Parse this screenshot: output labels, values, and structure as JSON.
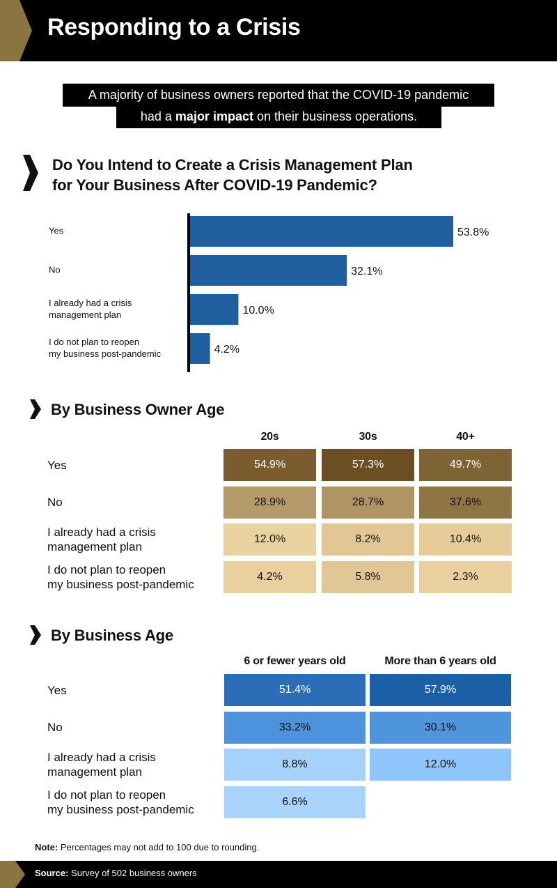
{
  "header": {
    "title": "Responding to a Crisis"
  },
  "intro": {
    "line1": "A majority of business owners reported that the COVID-19 pandemic",
    "line2_prefix": "had a ",
    "line2_bold": "major impact",
    "line2_suffix": " on their business operations."
  },
  "colors": {
    "gold_accent": "#8a7440",
    "bar_blue": "#1f5f9f",
    "owner_yes": [
      "#7a5c2e",
      "#6b4e22",
      "#7e6334"
    ],
    "owner_no": [
      "#b49a6b",
      "#ae9563",
      "#8f7444"
    ],
    "owner_had": [
      "#e8d2a0",
      "#e2c795",
      "#e6cc98"
    ],
    "owner_reopen": [
      "#e9d09e",
      "#e2c796",
      "#ead09f"
    ],
    "biz_yes": [
      "#2b6db6",
      "#1b5fa7"
    ],
    "biz_no": [
      "#4c92dc",
      "#4f95dd"
    ],
    "biz_had": [
      "#a6d1fb",
      "#8ec6fb"
    ],
    "biz_reopen": [
      "#a9d3fb"
    ]
  },
  "question": {
    "title_line1": "Do You Intend to Create a Crisis Management Plan",
    "title_line2": "for Your Business After COVID-19 Pandemic?"
  },
  "chart_data": {
    "type": "bar",
    "orientation": "horizontal",
    "categories": [
      [
        "Yes"
      ],
      [
        "No"
      ],
      [
        "I already had a crisis",
        "management plan"
      ],
      [
        "I do not plan to reopen",
        "my business post-pandemic"
      ]
    ],
    "values": [
      53.8,
      32.1,
      10.0,
      4.2
    ],
    "value_labels": [
      "53.8%",
      "32.1%",
      "10.0%",
      "4.2%"
    ],
    "xlim": [
      0,
      56
    ]
  },
  "owner_age": {
    "title": "By Business Owner Age",
    "columns": [
      "20s",
      "30s",
      "40+"
    ],
    "rows": [
      {
        "label": [
          "Yes"
        ],
        "values": [
          "54.9%",
          "57.3%",
          "49.7%"
        ]
      },
      {
        "label": [
          "No"
        ],
        "values": [
          "28.9%",
          "28.7%",
          "37.6%"
        ]
      },
      {
        "label": [
          "I already had a crisis",
          "management plan"
        ],
        "values": [
          "12.0%",
          "8.2%",
          "10.4%"
        ]
      },
      {
        "label": [
          "I do not plan to reopen",
          "my business post-pandemic"
        ],
        "values": [
          "4.2%",
          "5.8%",
          "2.3%"
        ]
      }
    ]
  },
  "business_age": {
    "title": "By Business Age",
    "columns": [
      "6 or fewer years old",
      "More than 6 years old"
    ],
    "rows": [
      {
        "label": [
          "Yes"
        ],
        "values": [
          "51.4%",
          "57.9%"
        ]
      },
      {
        "label": [
          "No"
        ],
        "values": [
          "33.2%",
          "30.1%"
        ]
      },
      {
        "label": [
          "I already had a crisis",
          "management plan"
        ],
        "values": [
          "8.8%",
          "12.0%"
        ]
      },
      {
        "label": [
          "I do not plan to reopen",
          "my business post-pandemic"
        ],
        "values": [
          "6.6%"
        ]
      }
    ]
  },
  "note": {
    "label": "Note:",
    "text": " Percentages may not add to 100 due to rounding."
  },
  "source": {
    "label": "Source:",
    "text": " Survey of 502 business owners"
  }
}
